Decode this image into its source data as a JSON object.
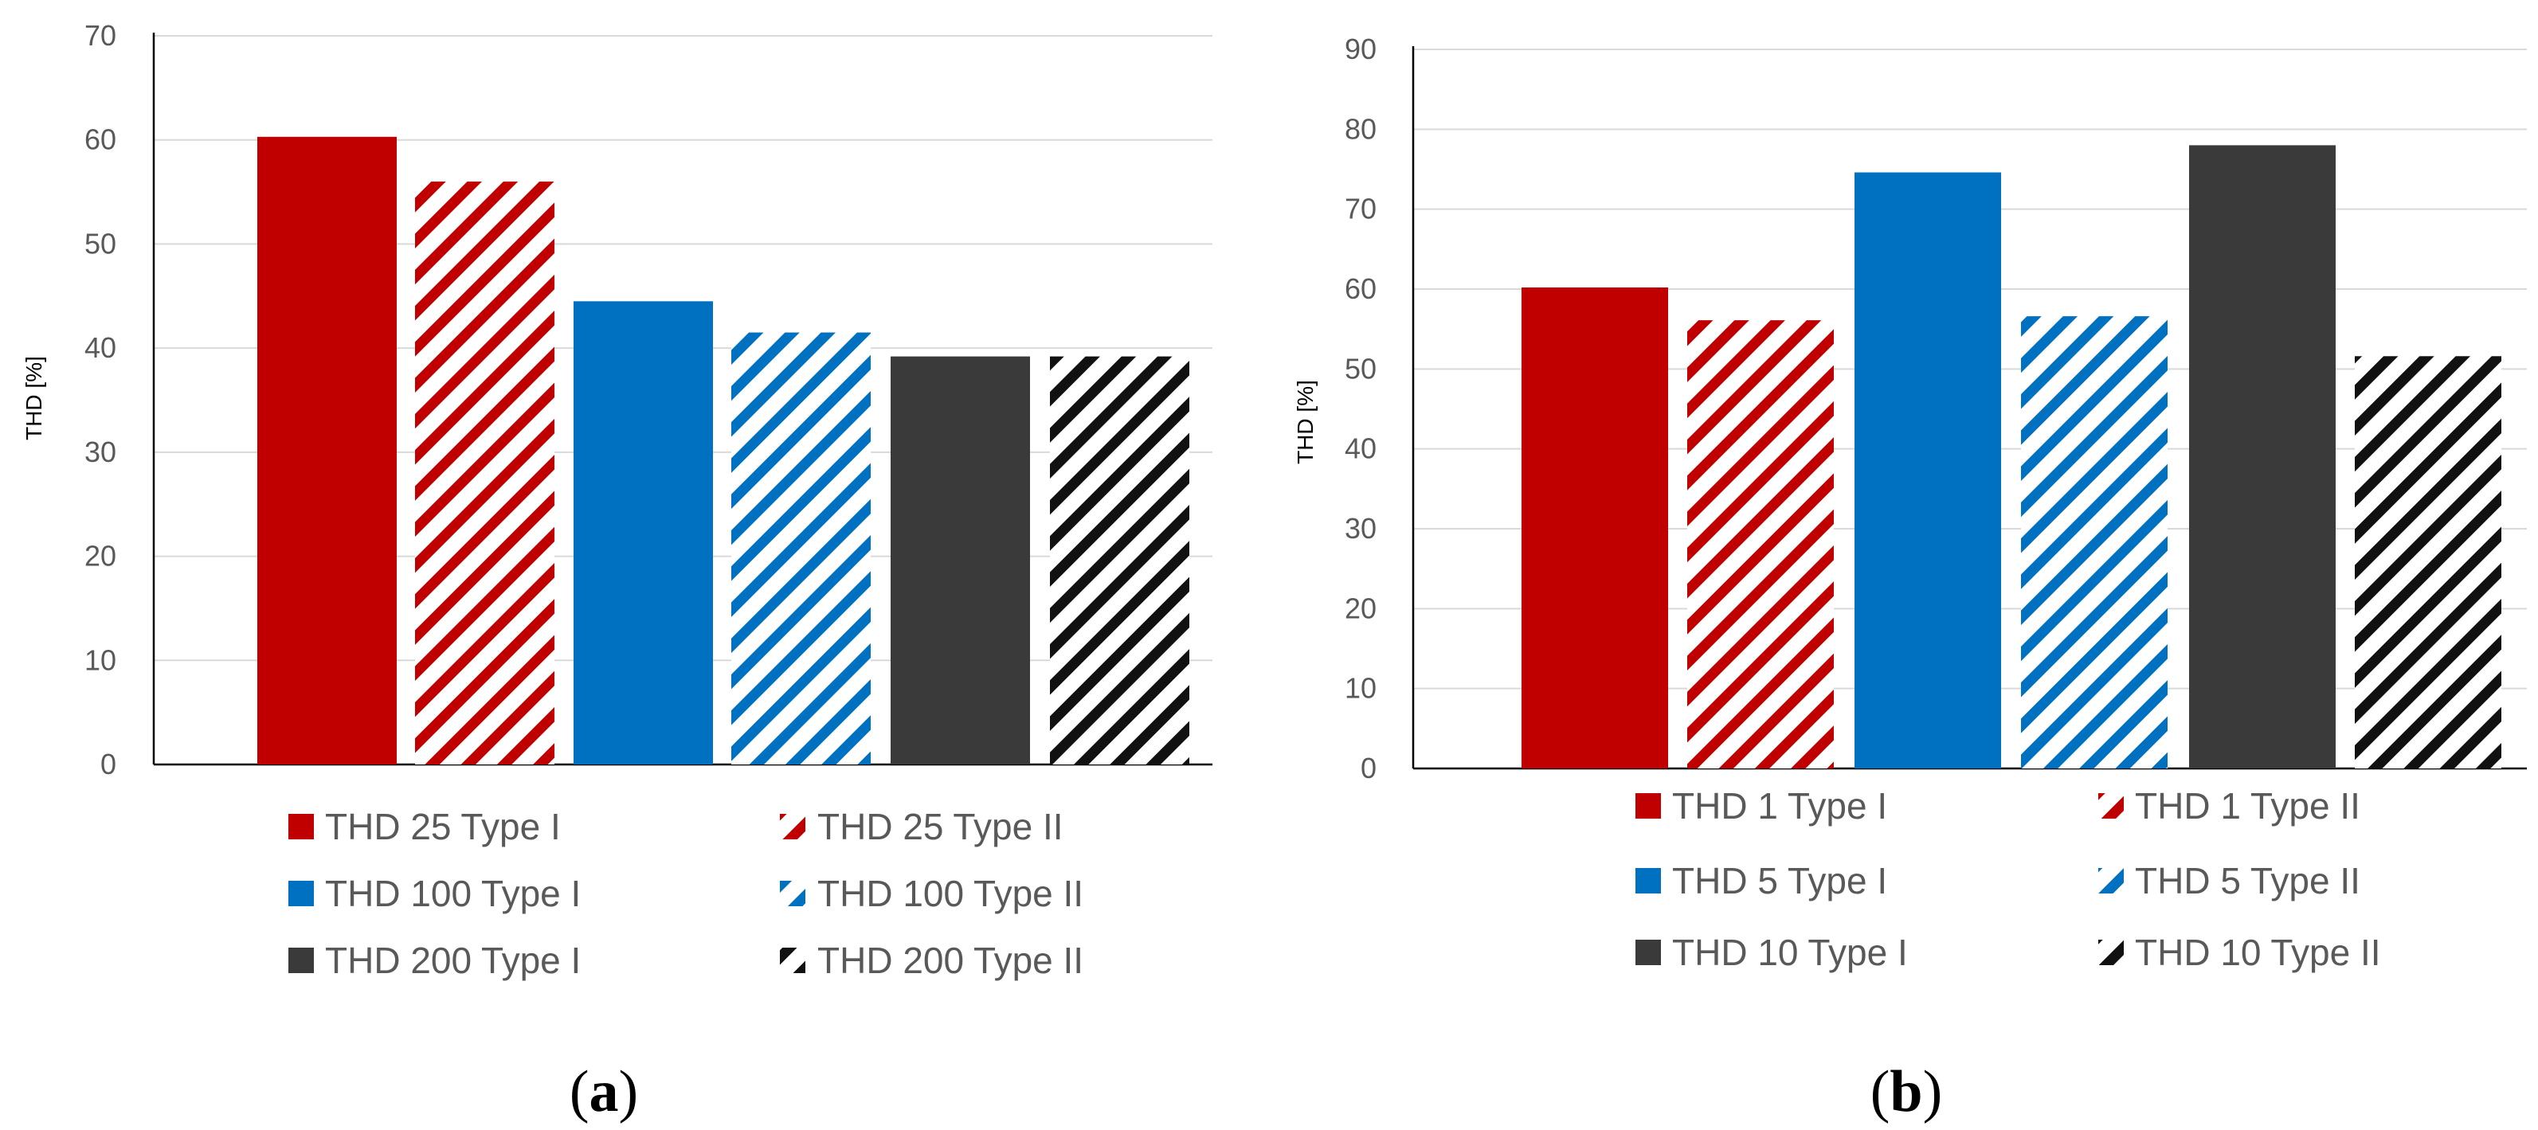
{
  "panels": [
    {
      "label": "a",
      "ylabel": "THD [%]",
      "legend": [
        "THD 25 Type I",
        "THD 25 Type II",
        "THD 100 Type I",
        "THD 100 Type II",
        "THD 200 Type I",
        "THD 200 Type II"
      ]
    },
    {
      "label": "b",
      "ylabel": "THD [%]",
      "legend": [
        "THD 1 Type I",
        "THD 1 Type II",
        "THD 5 Type I",
        "THD 5 Type II",
        "THD 10 Type I",
        "THD 10 Type II"
      ]
    }
  ],
  "colors": {
    "red": "#C00000",
    "blue": "#0070C0",
    "dark": "#3A3A3A",
    "black": "#111111",
    "grid": "#D9D9D9",
    "axis": "#000000"
  },
  "chart_data": [
    {
      "type": "bar",
      "ylabel": "THD [%]",
      "ylim": [
        0,
        70
      ],
      "yticks": [
        0,
        10,
        20,
        30,
        40,
        50,
        60,
        70
      ],
      "grid": true,
      "legend_position": "bottom",
      "series": [
        {
          "name": "THD 25 Type I",
          "value": 60.3,
          "color": "red",
          "pattern": "solid"
        },
        {
          "name": "THD 25 Type II",
          "value": 56,
          "color": "red",
          "pattern": "hatched"
        },
        {
          "name": "THD 100 Type I",
          "value": 44.5,
          "color": "blue",
          "pattern": "solid"
        },
        {
          "name": "THD 100 Type II",
          "value": 41.5,
          "color": "blue",
          "pattern": "hatched"
        },
        {
          "name": "THD 200 Type I",
          "value": 39.2,
          "color": "dark",
          "pattern": "solid"
        },
        {
          "name": "THD 200 Type II",
          "value": 39.2,
          "color": "black",
          "pattern": "hatched"
        }
      ]
    },
    {
      "type": "bar",
      "ylabel": "THD [%]",
      "ylim": [
        0,
        90
      ],
      "yticks": [
        0,
        10,
        20,
        30,
        40,
        50,
        60,
        70,
        80,
        90
      ],
      "grid": true,
      "legend_position": "bottom",
      "series": [
        {
          "name": "THD 1 Type I",
          "value": 60.2,
          "color": "red",
          "pattern": "solid"
        },
        {
          "name": "THD 1 Type II",
          "value": 56.1,
          "color": "red",
          "pattern": "hatched"
        },
        {
          "name": "THD 5 Type I",
          "value": 74.6,
          "color": "blue",
          "pattern": "solid"
        },
        {
          "name": "THD 5 Type II",
          "value": 56.6,
          "color": "blue",
          "pattern": "hatched"
        },
        {
          "name": "THD 10 Type I",
          "value": 78,
          "color": "dark",
          "pattern": "solid"
        },
        {
          "name": "THD 10 Type II",
          "value": 51.6,
          "color": "black",
          "pattern": "hatched"
        }
      ]
    }
  ]
}
